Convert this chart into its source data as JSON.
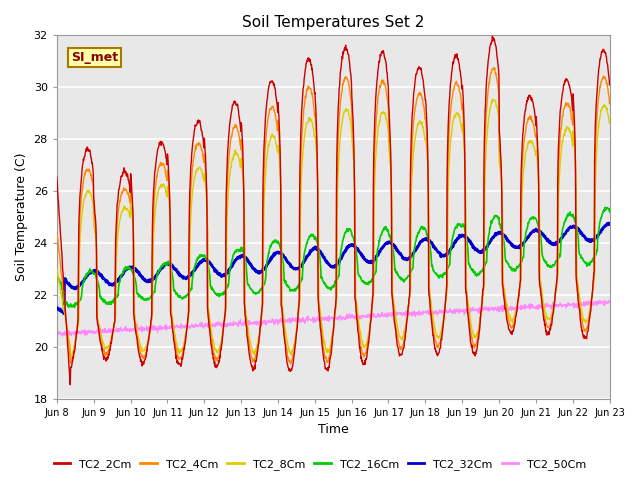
{
  "title": "Soil Temperatures Set 2",
  "xlabel": "Time",
  "ylabel": "Soil Temperature (C)",
  "ylim": [
    18,
    32
  ],
  "bg_color": "#e8e8e8",
  "annotation_text": "SI_met",
  "annotation_bg": "#ffffaa",
  "annotation_border": "#aa7700",
  "legend_labels": [
    "TC2_2Cm",
    "TC2_4Cm",
    "TC2_8Cm",
    "TC2_16Cm",
    "TC2_32Cm",
    "TC2_50Cm"
  ],
  "line_colors": [
    "#cc0000",
    "#ff8800",
    "#ddcc00",
    "#00cc00",
    "#0000cc",
    "#ff88ff"
  ],
  "line_widths": [
    1.0,
    1.0,
    1.0,
    1.2,
    2.0,
    1.0
  ],
  "x_tick_labels": [
    "Jun 8",
    "Jun 9",
    "Jun 10",
    "Jun 11",
    "Jun 12",
    "Jun 13",
    "Jun 14",
    "Jun 15",
    "Jun 16",
    "Jun 17",
    "Jun 18",
    "Jun 19",
    "Jun 20",
    "Jun 21",
    "Jun 22",
    "Jun 23"
  ],
  "x_tick_positions": [
    0,
    1,
    2,
    3,
    4,
    5,
    6,
    7,
    8,
    9,
    10,
    11,
    12,
    13,
    14,
    15
  ]
}
